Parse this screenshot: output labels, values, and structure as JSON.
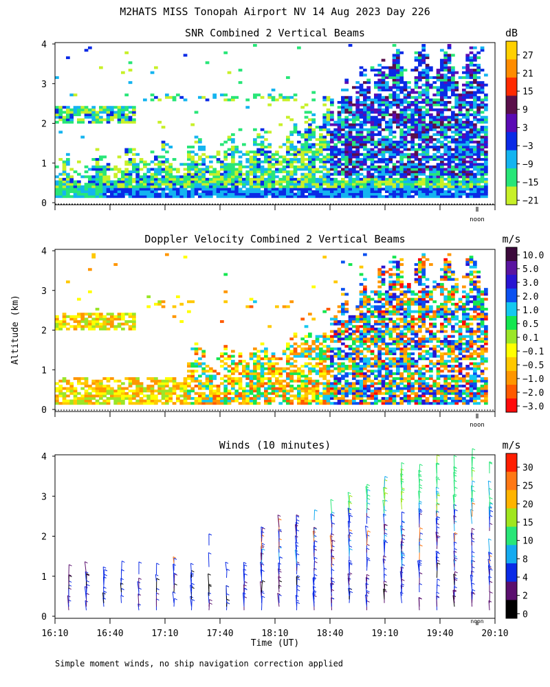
{
  "main_title": "M2HATS MISS Tonopah Airport NV  14 Aug 2023 Day 226",
  "footnote": "Simple moment winds, no ship navigation correction applied",
  "y_axis_label": "Altitude (km)",
  "x_axis_label": "Time (UT)",
  "noon_label": "noon",
  "chart_data": [
    {
      "id": "snr",
      "type": "heatmap",
      "title": "SNR Combined 2 Vertical Beams",
      "unit": "dB",
      "ylim": [
        0,
        4
      ],
      "y_ticks": [
        "0",
        "1",
        "2",
        "3",
        "4"
      ],
      "xlim": [
        "16:10",
        "20:10"
      ],
      "colorbar_labels": [
        "27",
        "21",
        "15",
        "9",
        "3",
        "−3",
        "−9",
        "−15",
        "−21"
      ],
      "colorbar_colors": [
        "#ffd000",
        "#ff8c00",
        "#ff2a00",
        "#5a0f4a",
        "#5a0ab4",
        "#0a2ae6",
        "#14b4f0",
        "#28e678",
        "#c8f028"
      ]
    },
    {
      "id": "doppler",
      "type": "heatmap",
      "title": "Doppler Velocity Combined 2 Vertical Beams",
      "unit": "m/s",
      "ylim": [
        0,
        4
      ],
      "y_ticks": [
        "0",
        "1",
        "2",
        "3",
        "4"
      ],
      "xlim": [
        "16:10",
        "20:10"
      ],
      "colorbar_labels": [
        "10.0",
        "5.0",
        "3.0",
        "2.0",
        "1.0",
        "0.5",
        "0.1",
        "−0.1",
        "−0.5",
        "−1.0",
        "−2.0",
        "−3.0"
      ],
      "colorbar_colors": [
        "#3c0a3c",
        "#5a14a0",
        "#2814d2",
        "#0a50f0",
        "#14c8f0",
        "#14e650",
        "#9be628",
        "#ffff00",
        "#ffc800",
        "#ff9600",
        "#ff5a00",
        "#ff0a0a"
      ]
    },
    {
      "id": "winds",
      "type": "wind-barbs",
      "title": "Winds (10 minutes)",
      "unit": "m/s",
      "ylim": [
        0,
        4
      ],
      "y_ticks": [
        "0",
        "1",
        "2",
        "3",
        "4"
      ],
      "x_tick_labels": [
        "16:10",
        "16:40",
        "17:10",
        "17:40",
        "18:10",
        "18:40",
        "19:10",
        "19:40",
        "20:10"
      ],
      "colorbar_labels": [
        "30",
        "25",
        "20",
        "15",
        "10",
        "8",
        "4",
        "2",
        "0"
      ],
      "colorbar_colors": [
        "#ff1e00",
        "#ff7814",
        "#ffb400",
        "#a0e61e",
        "#28e678",
        "#14aaf0",
        "#0a2ae6",
        "#5a0f6e",
        "#000000"
      ]
    }
  ]
}
